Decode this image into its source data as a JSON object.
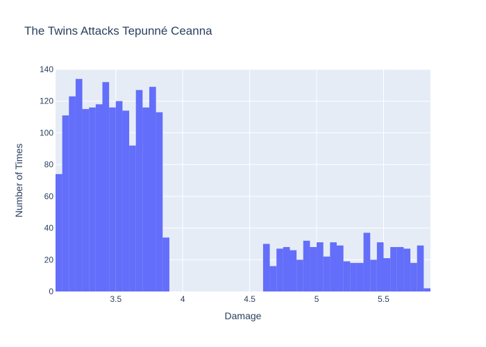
{
  "chart_data": {
    "type": "bar",
    "subtype": "histogram",
    "title": "The Twins Attacks Tepunné Ceanna",
    "xlabel": "Damage",
    "ylabel": "Number of Times",
    "xlim": [
      3.05,
      5.85
    ],
    "ylim": [
      0,
      140
    ],
    "bin_width": 0.05,
    "xticks": [
      3.5,
      4,
      4.5,
      5,
      5.5
    ],
    "xtick_labels": [
      "3.5",
      "4",
      "4.5",
      "5",
      "5.5"
    ],
    "yticks": [
      0,
      20,
      40,
      60,
      80,
      100,
      120,
      140
    ],
    "ytick_labels": [
      "0",
      "20",
      "40",
      "60",
      "80",
      "100",
      "120",
      "140"
    ],
    "grid": true,
    "bar_color": "#636efa",
    "plot_bgcolor": "#e5ecf6",
    "bins_start": [
      3.05,
      3.1,
      3.15,
      3.2,
      3.25,
      3.3,
      3.35,
      3.4,
      3.45,
      3.5,
      3.55,
      3.6,
      3.65,
      3.7,
      3.75,
      3.8,
      3.85,
      4.6,
      4.65,
      4.7,
      4.75,
      4.8,
      4.85,
      4.9,
      4.95,
      5.0,
      5.05,
      5.1,
      5.15,
      5.2,
      5.25,
      5.3,
      5.35,
      5.4,
      5.45,
      5.5,
      5.55,
      5.6,
      5.65,
      5.7,
      5.75,
      5.8
    ],
    "values": [
      74,
      111,
      123,
      134,
      115,
      116,
      118,
      132,
      116,
      120,
      114,
      92,
      127,
      116,
      129,
      113,
      34,
      30,
      16,
      27,
      28,
      26,
      20,
      32,
      28,
      31,
      22,
      31,
      29,
      19,
      18,
      18,
      37,
      20,
      31,
      21,
      28,
      28,
      27,
      18,
      29,
      2
    ]
  }
}
